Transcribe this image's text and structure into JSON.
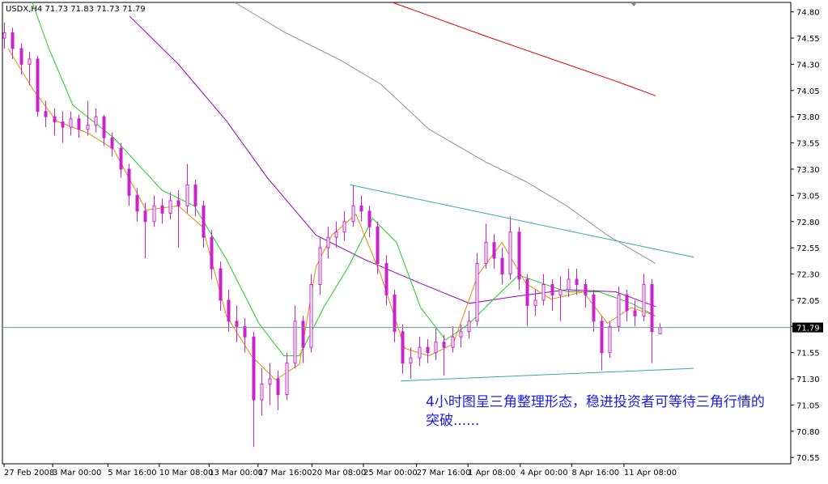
{
  "chart_data": {
    "type": "candlestick",
    "symbol": "USDX,H4",
    "up_color": "#ffffff",
    "down_color": "#cc22cc",
    "wick_color": "#cc22cc",
    "price_line_color": "#6a9a9a",
    "ylim": [
      70.49,
      74.89
    ],
    "yticks": [
      {
        "value": 74.8,
        "label": "74.80"
      },
      {
        "value": 74.55,
        "label": "74.55"
      },
      {
        "value": 74.3,
        "label": "74.30"
      },
      {
        "value": 74.05,
        "label": "74.05"
      },
      {
        "value": 73.8,
        "label": "73.80"
      },
      {
        "value": 73.55,
        "label": "73.55"
      },
      {
        "value": 73.3,
        "label": "73.30"
      },
      {
        "value": 73.05,
        "label": "73.05"
      },
      {
        "value": 72.8,
        "label": "72.80"
      },
      {
        "value": 72.55,
        "label": "72.55"
      },
      {
        "value": 72.3,
        "label": "72.30"
      },
      {
        "value": 72.05,
        "label": "72.05"
      },
      {
        "value": 71.8,
        "label": "71.80"
      },
      {
        "value": 71.55,
        "label": "71.55"
      },
      {
        "value": 71.3,
        "label": "71.30"
      },
      {
        "value": 71.05,
        "label": "71.05"
      },
      {
        "value": 70.8,
        "label": "70.80"
      },
      {
        "value": 70.55,
        "label": "70.55"
      }
    ],
    "xlim": [
      -0.2,
      94.8
    ],
    "xticks": [
      {
        "value": 0,
        "label": "27 Feb 2008"
      },
      {
        "value": 5.85,
        "label": "3 Mar 00:00"
      },
      {
        "value": 12.5,
        "label": "5 Mar 16:00"
      },
      {
        "value": 18.7,
        "label": "10 Mar 08:00"
      },
      {
        "value": 24.7,
        "label": "13 Mar 00:00"
      },
      {
        "value": 30.6,
        "label": "17 Mar 16:00"
      },
      {
        "value": 37.1,
        "label": "20 Mar 08:00"
      },
      {
        "value": 43.3,
        "label": "25 Mar 00:00"
      },
      {
        "value": 49.7,
        "label": "27 Mar 16:00"
      },
      {
        "value": 55.9,
        "label": "1 Apr 08:00"
      },
      {
        "value": 62.2,
        "label": "4 Apr 00:00"
      },
      {
        "value": 68.4,
        "label": "8 Apr 16:00"
      },
      {
        "value": 74.7,
        "label": "11 Apr 08:00"
      }
    ],
    "candles": [
      [
        74.55,
        74.7,
        74.45,
        74.6
      ],
      [
        74.6,
        74.65,
        74.35,
        74.45
      ],
      [
        74.45,
        74.5,
        74.2,
        74.3
      ],
      [
        74.3,
        74.42,
        74.1,
        74.35
      ],
      [
        74.35,
        74.38,
        73.8,
        73.85
      ],
      [
        73.85,
        73.95,
        73.7,
        73.8
      ],
      [
        73.8,
        73.88,
        73.62,
        73.75
      ],
      [
        73.75,
        73.85,
        73.55,
        73.7
      ],
      [
        73.7,
        73.85,
        73.62,
        73.78
      ],
      [
        73.78,
        73.82,
        73.6,
        73.68
      ],
      [
        73.68,
        73.95,
        73.62,
        73.72
      ],
      [
        73.72,
        73.88,
        73.65,
        73.8
      ],
      [
        73.8,
        73.82,
        73.52,
        73.6
      ],
      [
        73.6,
        73.65,
        73.42,
        73.5
      ],
      [
        73.5,
        73.55,
        73.22,
        73.3
      ],
      [
        73.3,
        73.35,
        72.95,
        73.05
      ],
      [
        73.05,
        73.12,
        72.8,
        72.9
      ],
      [
        72.9,
        72.98,
        72.45,
        72.8
      ],
      [
        72.8,
        73.05,
        72.75,
        72.95
      ],
      [
        72.95,
        73.02,
        72.78,
        72.88
      ],
      [
        72.88,
        73.08,
        72.82,
        73.0
      ],
      [
        73.0,
        73.1,
        72.55,
        72.95
      ],
      [
        72.95,
        73.35,
        72.88,
        73.15
      ],
      [
        73.15,
        73.2,
        72.85,
        72.95
      ],
      [
        72.95,
        73.0,
        72.55,
        72.65
      ],
      [
        72.65,
        72.72,
        72.25,
        72.35
      ],
      [
        72.35,
        72.42,
        71.95,
        72.05
      ],
      [
        72.05,
        72.15,
        71.75,
        71.85
      ],
      [
        71.85,
        72.0,
        71.65,
        71.8
      ],
      [
        71.8,
        71.88,
        71.55,
        71.7
      ],
      [
        71.7,
        71.75,
        70.65,
        71.1
      ],
      [
        71.1,
        71.4,
        70.95,
        71.25
      ],
      [
        71.25,
        71.45,
        71.05,
        71.3
      ],
      [
        71.3,
        71.38,
        71.0,
        71.15
      ],
      [
        71.15,
        71.55,
        71.1,
        71.45
      ],
      [
        71.45,
        72.0,
        71.4,
        71.85
      ],
      [
        71.85,
        71.9,
        71.45,
        71.6
      ],
      [
        71.6,
        72.3,
        71.55,
        72.2
      ],
      [
        72.2,
        72.65,
        72.1,
        72.55
      ],
      [
        72.55,
        72.75,
        72.45,
        72.65
      ],
      [
        72.65,
        72.8,
        72.55,
        72.7
      ],
      [
        72.7,
        72.9,
        72.62,
        72.8
      ],
      [
        72.8,
        73.15,
        72.75,
        72.95
      ],
      [
        72.95,
        73.05,
        72.8,
        72.9
      ],
      [
        72.9,
        72.95,
        72.65,
        72.75
      ],
      [
        72.75,
        72.8,
        72.3,
        72.4
      ],
      [
        72.4,
        72.48,
        72.0,
        72.1
      ],
      [
        72.1,
        72.15,
        71.65,
        71.75
      ],
      [
        71.75,
        71.82,
        71.35,
        71.45
      ],
      [
        71.45,
        71.6,
        71.3,
        71.5
      ],
      [
        71.5,
        71.7,
        71.42,
        71.6
      ],
      [
        71.6,
        71.68,
        71.45,
        71.55
      ],
      [
        71.55,
        71.78,
        71.48,
        71.65
      ],
      [
        71.65,
        71.72,
        71.33,
        71.6
      ],
      [
        71.6,
        71.8,
        71.55,
        71.7
      ],
      [
        71.7,
        71.82,
        71.6,
        71.75
      ],
      [
        71.75,
        71.95,
        71.68,
        71.85
      ],
      [
        71.85,
        72.5,
        71.8,
        72.4
      ],
      [
        72.4,
        72.78,
        72.35,
        72.6
      ],
      [
        72.6,
        72.68,
        72.35,
        72.45
      ],
      [
        72.45,
        72.55,
        72.2,
        72.3
      ],
      [
        72.3,
        72.85,
        72.25,
        72.7
      ],
      [
        72.7,
        72.75,
        72.15,
        72.25
      ],
      [
        72.25,
        72.3,
        71.8,
        72.0
      ],
      [
        72.0,
        72.15,
        71.9,
        72.05
      ],
      [
        72.05,
        72.3,
        72.0,
        72.2
      ],
      [
        72.2,
        72.25,
        71.95,
        72.1
      ],
      [
        72.1,
        72.28,
        71.85,
        72.15
      ],
      [
        72.15,
        72.35,
        72.08,
        72.25
      ],
      [
        72.25,
        72.35,
        72.1,
        72.2
      ],
      [
        72.2,
        72.25,
        71.98,
        72.1
      ],
      [
        72.1,
        72.15,
        71.75,
        71.85
      ],
      [
        71.85,
        71.9,
        71.38,
        71.55
      ],
      [
        71.55,
        71.85,
        71.5,
        71.8
      ],
      [
        71.8,
        72.18,
        71.75,
        72.1
      ],
      [
        72.1,
        72.15,
        71.85,
        71.95
      ],
      [
        71.95,
        72.05,
        71.8,
        71.9
      ],
      [
        71.9,
        72.3,
        71.85,
        72.2
      ],
      [
        72.2,
        72.25,
        71.45,
        71.75
      ],
      [
        71.73,
        71.83,
        71.73,
        71.79
      ]
    ],
    "series": [
      {
        "color": "#dd0000",
        "x": [
          46.8,
          58.0,
          67.8,
          73.7,
          78.5
        ],
        "values": [
          74.89,
          74.57,
          74.3,
          74.14,
          74.0
        ]
      },
      {
        "color": "#909090",
        "x": [
          27.8,
          33.7,
          40.5,
          45.4,
          51.2,
          58.0,
          62.9,
          67.8,
          72.7,
          78.5
        ],
        "values": [
          74.89,
          74.61,
          74.34,
          74.11,
          73.68,
          73.37,
          73.18,
          72.95,
          72.67,
          72.4
        ]
      },
      {
        "color": "#9900bb",
        "x": [
          15.1,
          21.0,
          26.8,
          31.7,
          37.6,
          43.4,
          50.2,
          56.1,
          62.0,
          67.8,
          73.7,
          78.5
        ],
        "values": [
          74.76,
          74.3,
          73.76,
          73.22,
          72.67,
          72.44,
          72.21,
          72.02,
          72.09,
          72.15,
          72.13,
          71.99
        ]
      },
      {
        "color": "#22cc22",
        "x": [
          3.4,
          5.4,
          8.3,
          13.2,
          19.0,
          22.9,
          26.8,
          30.7,
          33.7,
          35.6,
          38.5,
          41.5,
          44.4,
          47.3,
          50.2,
          53.2,
          56.1,
          59.0,
          62.0,
          64.9,
          67.8,
          71.7,
          75.6,
          78.5
        ],
        "values": [
          74.89,
          74.45,
          73.91,
          73.6,
          73.1,
          72.95,
          72.44,
          71.83,
          71.52,
          71.52,
          71.98,
          72.37,
          72.83,
          72.6,
          71.98,
          71.67,
          71.83,
          72.06,
          72.29,
          72.21,
          72.13,
          72.13,
          72.02,
          71.9
        ]
      },
      {
        "color": "#ee8800",
        "x": [
          0.5,
          3.4,
          6.3,
          10.2,
          13.2,
          17.1,
          21.0,
          23.9,
          26.8,
          29.8,
          32.7,
          35.6,
          37.6,
          39.5,
          42.4,
          45.4,
          48.3,
          51.2,
          54.1,
          57.1,
          60.0,
          62.9,
          65.9,
          69.8,
          72.7,
          75.6,
          78.5
        ],
        "values": [
          74.45,
          74.07,
          73.76,
          73.64,
          73.49,
          72.91,
          72.95,
          72.75,
          71.9,
          71.52,
          71.29,
          71.44,
          72.37,
          72.67,
          72.87,
          72.29,
          71.59,
          71.52,
          71.63,
          72.29,
          72.6,
          72.21,
          72.06,
          72.13,
          71.83,
          71.98,
          71.9
        ]
      }
    ],
    "trendlines": [
      {
        "color": "#33aaaa",
        "x": [
          41.7,
          83.1
        ],
        "values": [
          73.15,
          72.46
        ]
      },
      {
        "color": "#33aaaa",
        "x": [
          47.8,
          83.1
        ],
        "values": [
          71.28,
          71.4
        ]
      }
    ],
    "annotation": "4小时图呈三角整理形态，稳进投资者可等待三角行情的突破......"
  }
}
